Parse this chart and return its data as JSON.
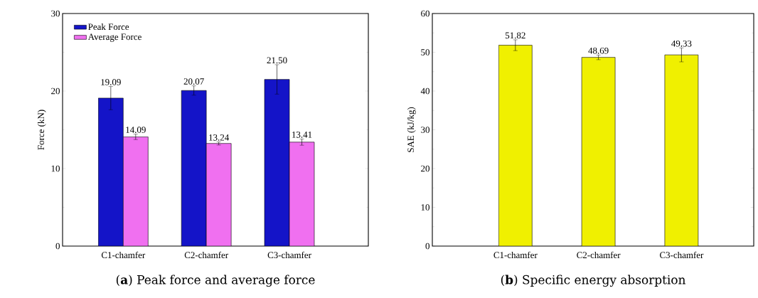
{
  "chart_data": [
    {
      "type": "bar",
      "categories": [
        "C1-chamfer",
        "C2-chamfer",
        "C3-chamfer"
      ],
      "ylabel": "Force (kN)",
      "series": [
        {
          "name": "Peak Force",
          "color": "#1414c8",
          "values": [
            19.09,
            20.07,
            21.5
          ],
          "errors": [
            1.5,
            0.6,
            1.9
          ],
          "value_labels": [
            "19.09",
            "20.07",
            "21.50"
          ]
        },
        {
          "name": "Average Force",
          "color": "#f070f0",
          "values": [
            14.09,
            13.24,
            13.41
          ],
          "errors": [
            0.35,
            0.2,
            0.4
          ],
          "value_labels": [
            "14.09",
            "13.24",
            "13.41"
          ]
        }
      ],
      "ylim": [
        0,
        30
      ],
      "yticks": [
        0,
        10,
        20,
        30
      ],
      "legend": "top left",
      "annotations": [
        "(**a**) Peak force and average force"
      ]
    },
    {
      "type": "bar",
      "categories": [
        "C1-chamfer",
        "C2-chamfer",
        "C3-chamfer"
      ],
      "ylabel": "SAE (kJ/kg)",
      "series": [
        {
          "color": "#f0f000",
          "values": [
            51.82,
            48.69,
            49.33
          ],
          "errors": [
            1.4,
            0.6,
            1.8
          ],
          "value_labels": [
            "51.82",
            "48.69",
            "49.33"
          ]
        }
      ],
      "ylim": [
        0,
        60
      ],
      "yticks": [
        0,
        10,
        20,
        30,
        40,
        50,
        60
      ],
      "annotations": [
        "(**b**) Specific energy absorption"
      ]
    }
  ]
}
